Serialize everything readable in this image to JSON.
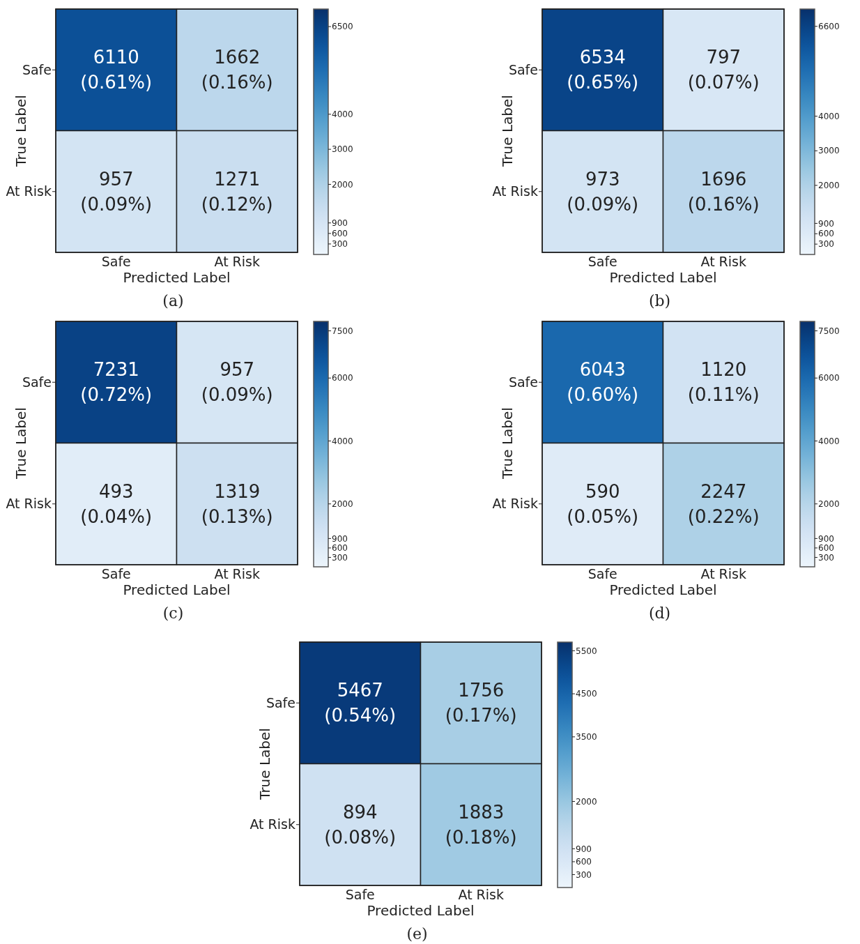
{
  "chart_data": [
    {
      "type": "heatmap",
      "categories": [
        "Safe",
        "At Risk"
      ],
      "y_categories": [
        "Safe",
        "At Risk"
      ],
      "cells": [
        [
          6110,
          1662
        ],
        [
          957,
          1271
        ]
      ],
      "cell_labels": [
        [
          "6110\n(0.61%)",
          "1662\n(0.16%)"
        ],
        [
          "957\n(0.09%)",
          "1271\n(0.12%)"
        ]
      ],
      "clim": [
        0,
        7000
      ],
      "cticks": [
        300,
        600,
        900,
        2000,
        3000,
        4000,
        6500
      ],
      "xlabel": "Predicted Label",
      "ylabel": "True Label",
      "annotations": [
        "(a)"
      ]
    },
    {
      "type": "heatmap",
      "categories": [
        "Safe",
        "At Risk"
      ],
      "y_categories": [
        "Safe",
        "At Risk"
      ],
      "cells": [
        [
          6534,
          797
        ],
        [
          973,
          1696
        ]
      ],
      "cell_labels": [
        [
          "6534\n(0.65%)",
          "797\n(0.07%)"
        ],
        [
          "973\n(0.09%)",
          "1696\n(0.16%)"
        ]
      ],
      "clim": [
        0,
        7100
      ],
      "cticks": [
        300,
        600,
        900,
        2000,
        3000,
        4000,
        6600
      ],
      "xlabel": "Predicted Label",
      "ylabel": "True Label",
      "annotations": [
        "(b)"
      ]
    },
    {
      "type": "heatmap",
      "categories": [
        "Safe",
        "At Risk"
      ],
      "y_categories": [
        "Safe",
        "At Risk"
      ],
      "cells": [
        [
          7231,
          957
        ],
        [
          493,
          1319
        ]
      ],
      "cell_labels": [
        [
          "7231\n(0.72%)",
          "957\n(0.09%)"
        ],
        [
          "493\n(0.04%)",
          "1319\n(0.13%)"
        ]
      ],
      "clim": [
        0,
        7800
      ],
      "cticks": [
        300,
        600,
        900,
        2000,
        4000,
        6000,
        7500
      ],
      "xlabel": "Predicted Label",
      "ylabel": "True Label",
      "annotations": [
        "(c)"
      ]
    },
    {
      "type": "heatmap",
      "categories": [
        "Safe",
        "At Risk"
      ],
      "y_categories": [
        "Safe",
        "At Risk"
      ],
      "cells": [
        [
          6043,
          1120
        ],
        [
          590,
          2247
        ]
      ],
      "cell_labels": [
        [
          "6043\n(0.60%)",
          "1120\n(0.11%)"
        ],
        [
          "590\n(0.05%)",
          "2247\n(0.22%)"
        ]
      ],
      "clim": [
        0,
        7800
      ],
      "cticks": [
        300,
        600,
        900,
        2000,
        4000,
        6000,
        7500
      ],
      "xlabel": "Predicted Label",
      "ylabel": "True Label",
      "annotations": [
        "(d)"
      ]
    },
    {
      "type": "heatmap",
      "categories": [
        "Safe",
        "At Risk"
      ],
      "y_categories": [
        "Safe",
        "At Risk"
      ],
      "cells": [
        [
          5467,
          1756
        ],
        [
          894,
          1883
        ]
      ],
      "cell_labels": [
        [
          "5467\n(0.54%)",
          "1756\n(0.17%)"
        ],
        [
          "894\n(0.08%)",
          "1883\n(0.18%)"
        ]
      ],
      "clim": [
        0,
        5700
      ],
      "cticks": [
        300,
        600,
        900,
        2000,
        3500,
        4500,
        5500
      ],
      "xlabel": "Predicted Label",
      "ylabel": "True Label",
      "annotations": [
        "(e)"
      ]
    }
  ]
}
